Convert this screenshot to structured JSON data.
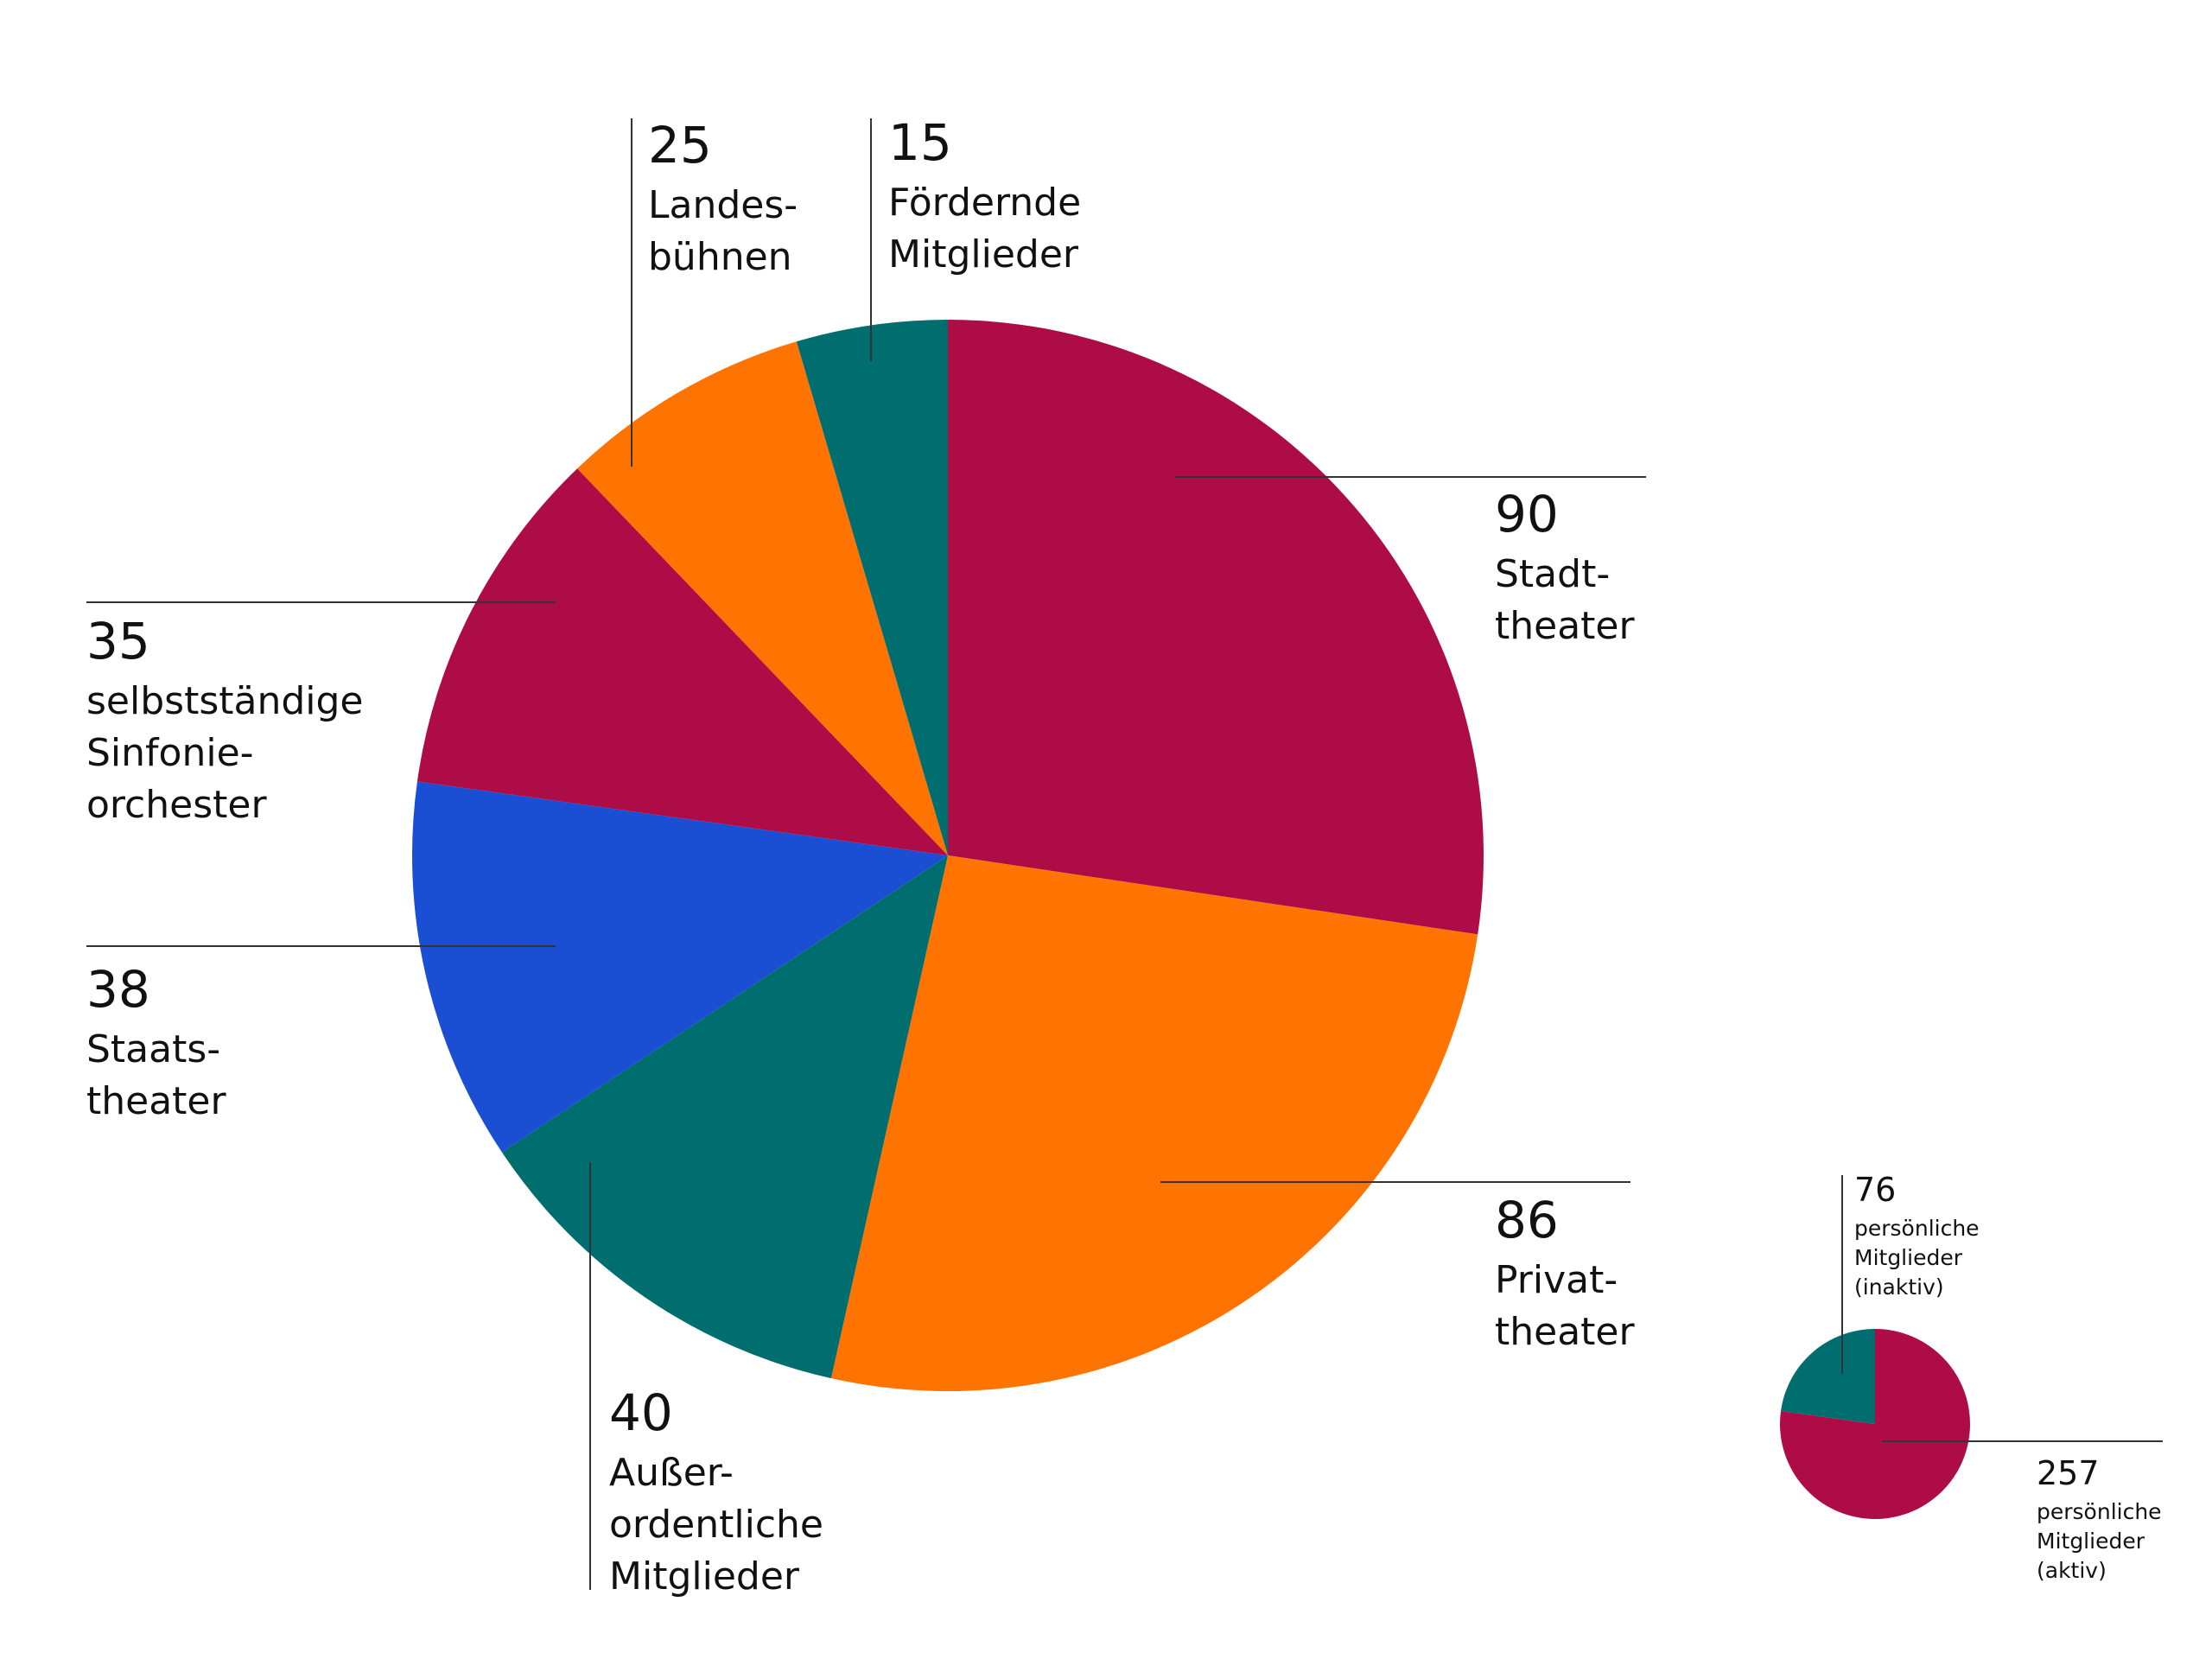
{
  "colors": {
    "crimson": "#ad0c47",
    "orange": "#ff7300",
    "teal": "#006d6f",
    "blue": "#1b4fd3",
    "leader": "#333333"
  },
  "chart_data": [
    {
      "type": "pie",
      "title": "",
      "slices": [
        {
          "value": 90,
          "label_lines": [
            "Stadt-",
            "theater"
          ],
          "color": "#ad0c47"
        },
        {
          "value": 86,
          "label_lines": [
            "Privat-",
            "theater"
          ],
          "color": "#ff7300"
        },
        {
          "value": 40,
          "label_lines": [
            "Außer-",
            "ordentliche",
            "Mitglieder"
          ],
          "color": "#006d6f"
        },
        {
          "value": 38,
          "label_lines": [
            "Staats-",
            "theater"
          ],
          "color": "#1b4fd3"
        },
        {
          "value": 35,
          "label_lines": [
            "selbstständige",
            "Sinfonie-",
            "orchester"
          ],
          "color": "#ad0c47"
        },
        {
          "value": 25,
          "label_lines": [
            "Landes-",
            "bühnen"
          ],
          "color": "#ff7300"
        },
        {
          "value": 15,
          "label_lines": [
            "Fördernde",
            "Mitglieder"
          ],
          "color": "#006d6f"
        }
      ]
    },
    {
      "type": "pie",
      "title": "",
      "slices": [
        {
          "value": 257,
          "label_lines": [
            "persönliche",
            "Mitglieder",
            "(aktiv)"
          ],
          "color": "#ad0c47"
        },
        {
          "value": 76,
          "label_lines": [
            "persönliche",
            "Mitglieder",
            "(inaktiv)"
          ],
          "color": "#006d6f"
        }
      ]
    }
  ]
}
